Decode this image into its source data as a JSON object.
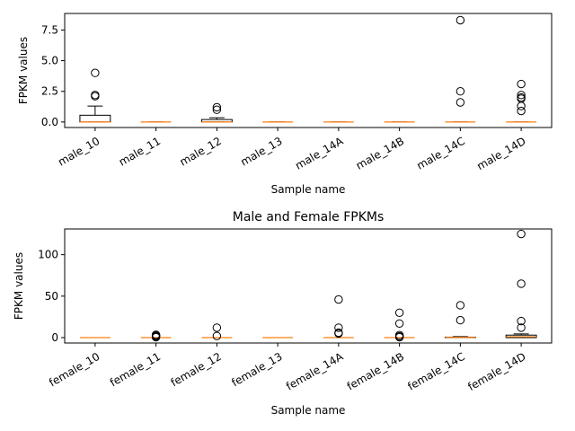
{
  "chart_data": [
    {
      "type": "box",
      "title": "",
      "xlabel": "Sample name",
      "ylabel": "FPKM values",
      "ylim": [
        -0.45,
        8.85
      ],
      "yticks": [
        0.0,
        2.5,
        5.0,
        7.5
      ],
      "ytick_labels": [
        "0.0",
        "2.5",
        "5.0",
        "7.5"
      ],
      "grid": false,
      "categories": [
        "male_10",
        "male_11",
        "male_12",
        "male_13",
        "male_14A",
        "male_14B",
        "male_14C",
        "male_14D"
      ],
      "boxes": [
        {
          "whislo": 0.0,
          "q1": 0.0,
          "med": 0.0,
          "q3": 0.55,
          "whishi": 1.3,
          "fliers": [
            4.0,
            2.2,
            2.1
          ]
        },
        {
          "whislo": 0.0,
          "q1": 0.0,
          "med": 0.0,
          "q3": 0.0,
          "whishi": 0.0,
          "fliers": []
        },
        {
          "whislo": 0.0,
          "q1": 0.0,
          "med": 0.0,
          "q3": 0.2,
          "whishi": 0.35,
          "fliers": [
            1.2,
            1.0
          ]
        },
        {
          "whislo": 0.0,
          "q1": 0.0,
          "med": 0.0,
          "q3": 0.0,
          "whishi": 0.0,
          "fliers": []
        },
        {
          "whislo": 0.0,
          "q1": 0.0,
          "med": 0.0,
          "q3": 0.0,
          "whishi": 0.0,
          "fliers": []
        },
        {
          "whislo": 0.0,
          "q1": 0.0,
          "med": 0.0,
          "q3": 0.0,
          "whishi": 0.0,
          "fliers": []
        },
        {
          "whislo": 0.0,
          "q1": 0.0,
          "med": 0.0,
          "q3": 0.0,
          "whishi": 0.0,
          "fliers": [
            8.3,
            2.5,
            1.6
          ]
        },
        {
          "whislo": 0.0,
          "q1": 0.0,
          "med": 0.0,
          "q3": 0.0,
          "whishi": 0.0,
          "fliers": [
            3.1,
            2.2,
            2.0,
            1.9,
            1.3,
            0.9
          ]
        }
      ]
    },
    {
      "type": "box",
      "title": "Male and Female FPKMs",
      "xlabel": "Sample name",
      "ylabel": "FPKM values",
      "ylim": [
        -6.5,
        131
      ],
      "yticks": [
        0,
        50,
        100
      ],
      "ytick_labels": [
        "0",
        "50",
        "100"
      ],
      "grid": false,
      "categories": [
        "female_10",
        "female_11",
        "female_12",
        "female_13",
        "female_14A",
        "female_14B",
        "female_14C",
        "female_14D"
      ],
      "boxes": [
        {
          "whislo": 0.0,
          "q1": 0.0,
          "med": 0.0,
          "q3": 0.0,
          "whishi": 0.0,
          "fliers": []
        },
        {
          "whislo": 0.0,
          "q1": 0.0,
          "med": 0.0,
          "q3": 0.0,
          "whishi": 0.0,
          "fliers": [
            3.5,
            2.5,
            1.5,
            0.5
          ]
        },
        {
          "whislo": 0.0,
          "q1": 0.0,
          "med": 0.0,
          "q3": 0.0,
          "whishi": 0.0,
          "fliers": [
            12.0,
            2.0
          ]
        },
        {
          "whislo": 0.0,
          "q1": 0.0,
          "med": 0.0,
          "q3": 0.0,
          "whishi": 0.0,
          "fliers": []
        },
        {
          "whislo": 0.0,
          "q1": 0.0,
          "med": 0.0,
          "q3": 0.0,
          "whishi": 0.0,
          "fliers": [
            46.0,
            12.0,
            6.0,
            5.0
          ]
        },
        {
          "whislo": 0.0,
          "q1": 0.0,
          "med": 0.0,
          "q3": 0.0,
          "whishi": 0.0,
          "fliers": [
            30.0,
            17.0,
            3.0,
            1.5,
            0.5
          ]
        },
        {
          "whislo": 0.0,
          "q1": 0.0,
          "med": 0.3,
          "q3": 0.6,
          "whishi": 1.2,
          "fliers": [
            39.0,
            21.0
          ]
        },
        {
          "whislo": 0.0,
          "q1": 0.0,
          "med": 1.0,
          "q3": 3.0,
          "whishi": 4.5,
          "fliers": [
            125.0,
            65.0,
            20.0,
            12.0
          ]
        }
      ]
    }
  ]
}
